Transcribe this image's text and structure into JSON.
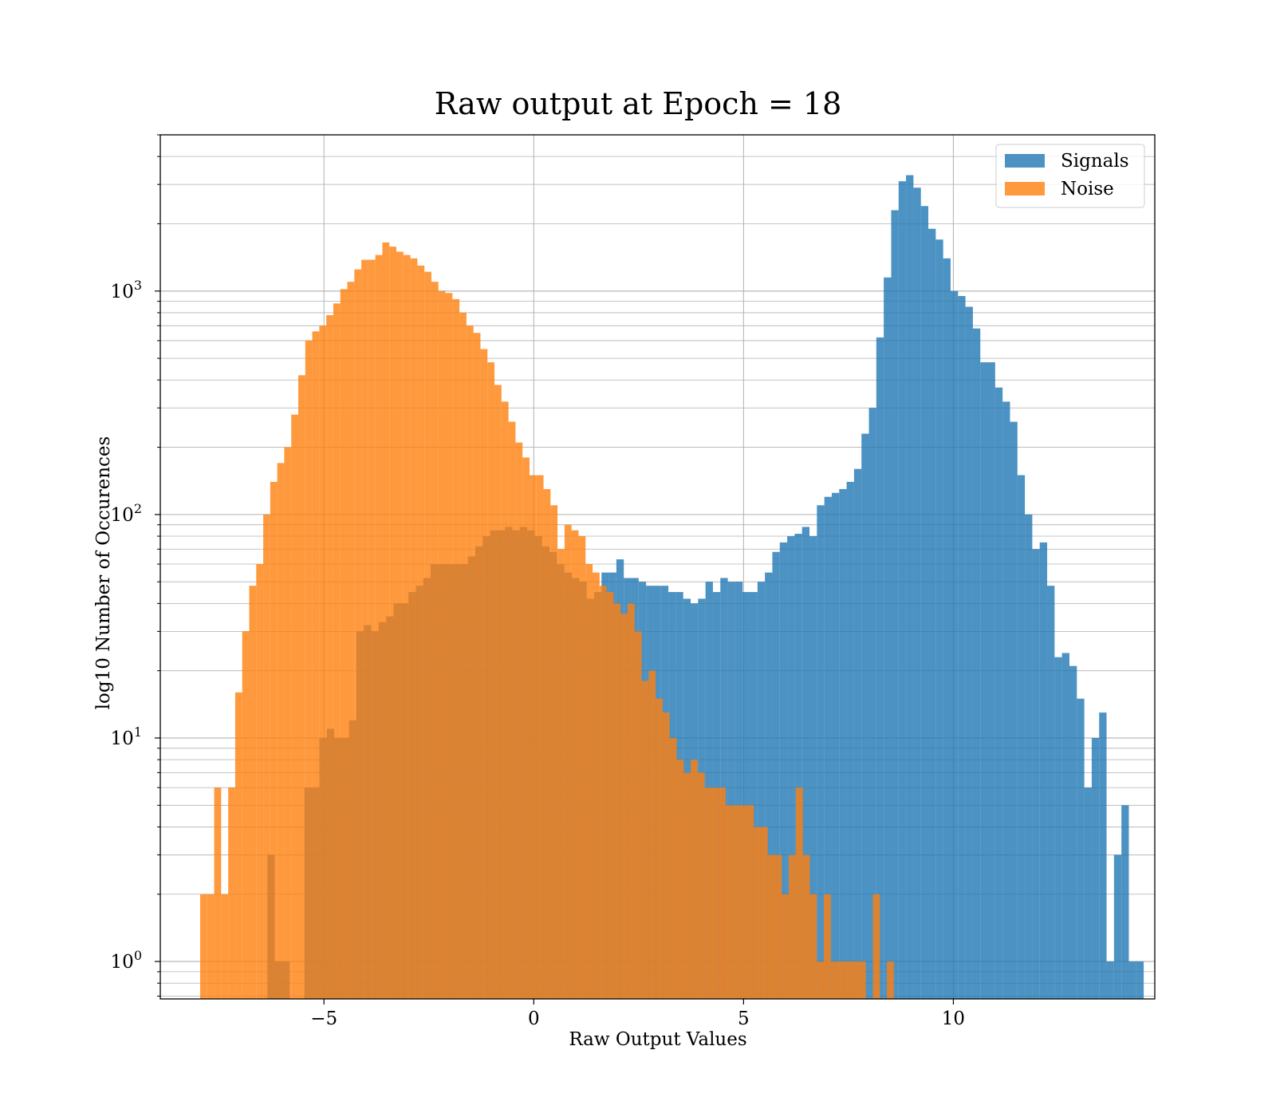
{
  "chart_data": {
    "type": "histogram",
    "title": "Raw output at Epoch = 18",
    "xlabel": "Raw Output Values",
    "ylabel": "log10 Number of Occurences",
    "xscale": "linear",
    "yscale": "log",
    "xlim": [
      -8.9,
      14.8
    ],
    "ylim": [
      0.68,
      5000
    ],
    "xticks": [
      -5,
      0,
      5,
      10
    ],
    "xtick_labels": [
      "−5",
      "0",
      "5",
      "10"
    ],
    "yticks": [
      1,
      10,
      100,
      1000
    ],
    "ytick_base": "10",
    "ytick_exponents": [
      "0",
      "1",
      "2",
      "3"
    ],
    "grid": true,
    "legend_position": "upper right",
    "series": [
      {
        "name": "Signals",
        "color": "#1f77b4",
        "opacity": 0.8,
        "bin_start": -6.35,
        "bin_width": 0.177,
        "counts": [
          3,
          1,
          1,
          0,
          0,
          6,
          6,
          10,
          11,
          10,
          10,
          12,
          30,
          32,
          30,
          33,
          35,
          40,
          40,
          45,
          48,
          52,
          60,
          60,
          60,
          60,
          60,
          65,
          72,
          80,
          85,
          85,
          88,
          85,
          88,
          85,
          80,
          72,
          68,
          60,
          55,
          52,
          50,
          42,
          45,
          55,
          55,
          63,
          52,
          52,
          50,
          48,
          48,
          48,
          45,
          45,
          42,
          40,
          42,
          50,
          45,
          52,
          50,
          50,
          45,
          45,
          50,
          55,
          68,
          75,
          80,
          82,
          88,
          80,
          110,
          120,
          125,
          130,
          140,
          160,
          230,
          300,
          620,
          1150,
          2300,
          3100,
          3300,
          2900,
          2400,
          1900,
          1700,
          1400,
          1000,
          950,
          850,
          680,
          480,
          480,
          370,
          320,
          260,
          150,
          100,
          70,
          75,
          48,
          23,
          24,
          21,
          15,
          6,
          10,
          13,
          1,
          3,
          5,
          1,
          1
        ]
      },
      {
        "name": "Noise",
        "color": "#ff7f0e",
        "opacity": 0.8,
        "bin_start": -7.95,
        "bin_width": 0.167,
        "counts": [
          2,
          2,
          6,
          2,
          6,
          16,
          30,
          48,
          60,
          100,
          140,
          170,
          200,
          280,
          420,
          600,
          660,
          700,
          780,
          880,
          1020,
          1100,
          1250,
          1380,
          1380,
          1450,
          1650,
          1580,
          1500,
          1450,
          1400,
          1300,
          1220,
          1100,
          1000,
          980,
          920,
          800,
          700,
          650,
          550,
          480,
          380,
          320,
          260,
          210,
          180,
          150,
          150,
          130,
          110,
          70,
          90,
          85,
          80,
          60,
          55,
          48,
          45,
          40,
          36,
          40,
          30,
          18,
          20,
          15,
          13,
          10,
          8,
          7,
          8,
          7,
          6,
          6,
          6,
          5,
          5,
          5,
          5,
          4,
          4,
          3,
          3,
          2,
          3,
          6,
          3,
          2,
          1,
          2,
          1,
          1,
          1,
          1,
          1,
          0,
          2,
          0,
          1
        ]
      }
    ]
  }
}
